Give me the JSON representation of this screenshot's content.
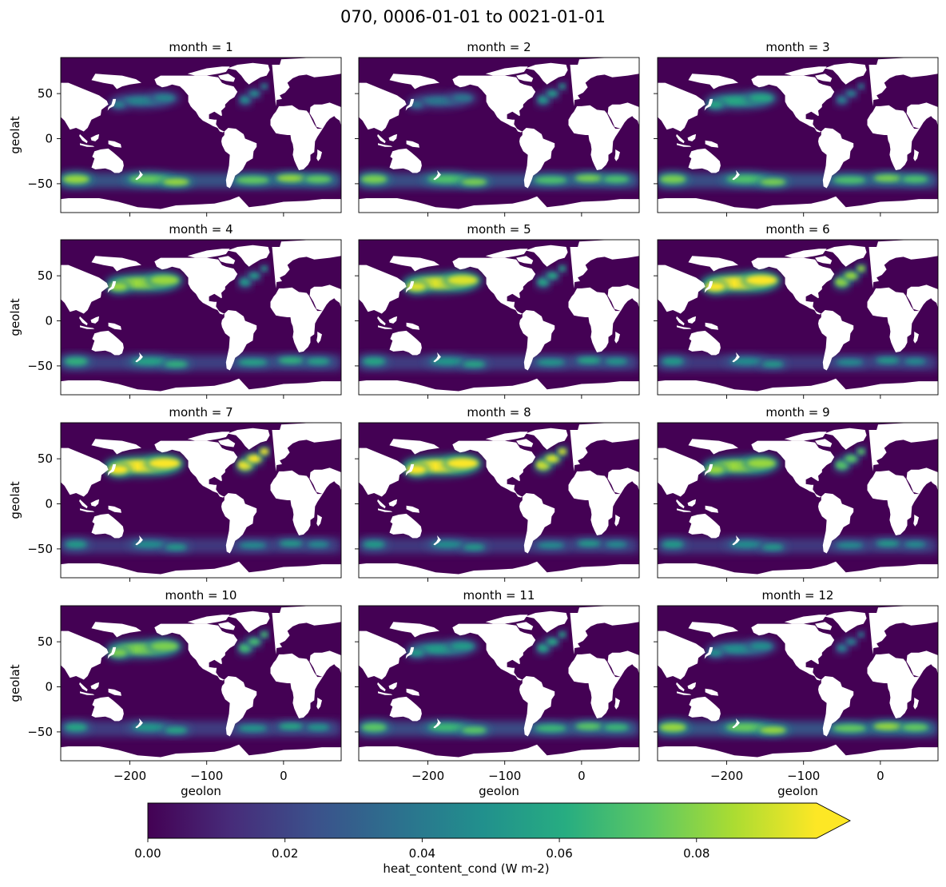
{
  "figure": {
    "title": "070, 0006-01-01 to 0021-01-01"
  },
  "chart_data": {
    "type": "heatmap",
    "description_variable": "heat_content_cond",
    "xlabel": "geolon",
    "ylabel": "geolat",
    "xlim": [
      -290,
      75
    ],
    "ylim": [
      -82,
      90
    ],
    "xticks": [
      -200,
      -100,
      0
    ],
    "xtick_labels": [
      "−200",
      "−100",
      "0"
    ],
    "yticks": [
      50,
      0,
      -50
    ],
    "ytick_labels": [
      "50",
      "0",
      "−50"
    ],
    "panels": [
      {
        "title": "month = 1",
        "month": 1,
        "np_intensity": 0.45,
        "atl_intensity": 0.5,
        "so_intensity": 0.85
      },
      {
        "title": "month = 2",
        "month": 2,
        "np_intensity": 0.4,
        "atl_intensity": 0.55,
        "so_intensity": 0.8
      },
      {
        "title": "month = 3",
        "month": 3,
        "np_intensity": 0.6,
        "atl_intensity": 0.45,
        "so_intensity": 0.8
      },
      {
        "title": "month = 4",
        "month": 4,
        "np_intensity": 0.85,
        "atl_intensity": 0.55,
        "so_intensity": 0.65
      },
      {
        "title": "month = 5",
        "month": 5,
        "np_intensity": 0.95,
        "atl_intensity": 0.6,
        "so_intensity": 0.6
      },
      {
        "title": "month = 6",
        "month": 6,
        "np_intensity": 1.0,
        "atl_intensity": 0.85,
        "so_intensity": 0.55
      },
      {
        "title": "month = 7",
        "month": 7,
        "np_intensity": 1.0,
        "atl_intensity": 1.0,
        "so_intensity": 0.55
      },
      {
        "title": "month = 8",
        "month": 8,
        "np_intensity": 1.0,
        "atl_intensity": 0.95,
        "so_intensity": 0.55
      },
      {
        "title": "month = 9",
        "month": 9,
        "np_intensity": 0.85,
        "atl_intensity": 0.75,
        "so_intensity": 0.55
      },
      {
        "title": "month = 10",
        "month": 10,
        "np_intensity": 0.8,
        "atl_intensity": 0.7,
        "so_intensity": 0.6
      },
      {
        "title": "month = 11",
        "month": 11,
        "np_intensity": 0.55,
        "atl_intensity": 0.6,
        "so_intensity": 0.75
      },
      {
        "title": "month = 12",
        "month": 12,
        "np_intensity": 0.5,
        "atl_intensity": 0.45,
        "so_intensity": 0.85
      }
    ],
    "colorbar": {
      "label": "heat_content_cond (W m-2)",
      "colormap": "viridis",
      "extend": "max",
      "range": [
        0.0,
        0.0975
      ],
      "ticks": [
        0.0,
        0.02,
        0.04,
        0.06,
        0.08
      ],
      "tick_labels": [
        "0.00",
        "0.02",
        "0.04",
        "0.06",
        "0.08"
      ]
    },
    "colors": {
      "ocean_base": "#440154",
      "land": "#ffffff",
      "viridis": [
        "#440154",
        "#472c7a",
        "#3b518b",
        "#2c718e",
        "#21908d",
        "#27ad81",
        "#5cc863",
        "#aadc32",
        "#fde725"
      ]
    }
  }
}
